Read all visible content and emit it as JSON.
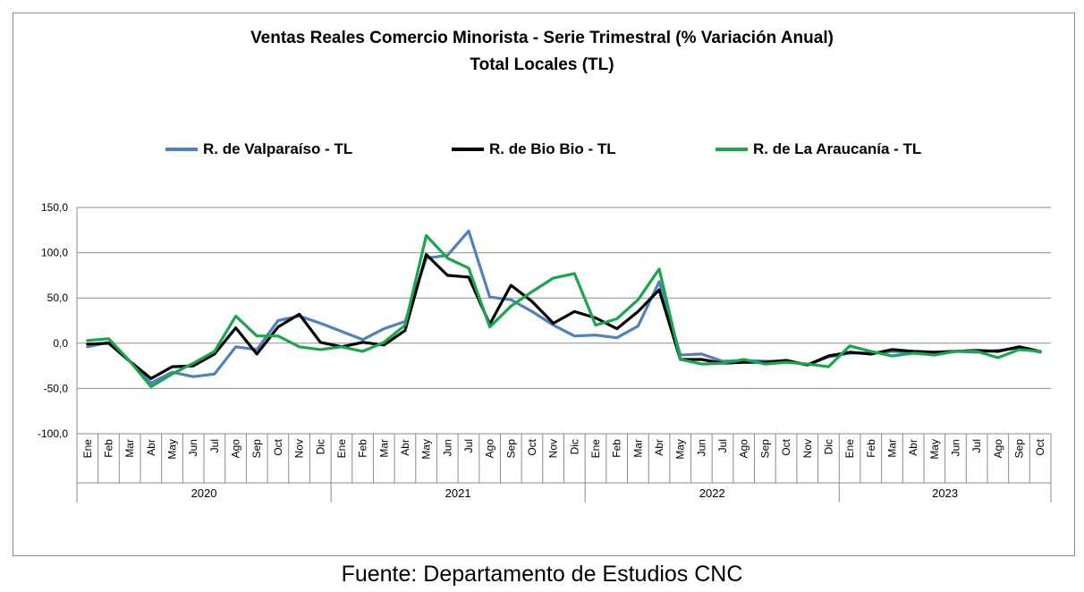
{
  "source_text": "Fuente: Departamento de Estudios CNC",
  "chart_data": {
    "type": "line",
    "title": "Ventas Reales Comercio Minorista - Serie Trimestral (% Variación Anual)",
    "subtitle": "Total Locales (TL)",
    "legend_position": "top",
    "grid": "horizontal",
    "ylim": [
      -100,
      150
    ],
    "yticks": [
      "150,0",
      "100,0",
      "50,0",
      "0,0",
      "-50,0",
      "-100,0"
    ],
    "ytick_values": [
      150,
      100,
      50,
      0,
      -50,
      -100
    ],
    "categories": [
      "Ene",
      "Feb",
      "Mar",
      "Abr",
      "May",
      "Jun",
      "Jul",
      "Ago",
      "Sep",
      "Oct",
      "Nov",
      "Dic",
      "Ene",
      "Feb",
      "Mar",
      "Abr",
      "May",
      "Jun",
      "Jul",
      "Ago",
      "Sep",
      "Oct",
      "Nov",
      "Dic",
      "Ene",
      "Feb",
      "Mar",
      "Abr",
      "May",
      "Jun",
      "Jul",
      "Ago",
      "Sep",
      "Oct",
      "Nov",
      "Dic",
      "Ene",
      "Feb",
      "Mar",
      "Abr",
      "May",
      "Jun",
      "Jul",
      "Ago",
      "Sep",
      "Oct"
    ],
    "years": [
      {
        "label": "2020",
        "count": 12
      },
      {
        "label": "2021",
        "count": 12
      },
      {
        "label": "2022",
        "count": 12
      },
      {
        "label": "2023",
        "count": 10
      }
    ],
    "series": [
      {
        "name": "R. de Valparaíso - TL",
        "color": "#4f81bd",
        "values": [
          -4,
          1,
          -20,
          -44,
          -32,
          -37,
          -34,
          -4,
          -7,
          25,
          30,
          22,
          13,
          4,
          16,
          24,
          94,
          97,
          124,
          51,
          48,
          35,
          20,
          8,
          9,
          6,
          19,
          68,
          -13,
          -12,
          -20,
          -19,
          -20,
          -20,
          -24,
          -15,
          -11,
          -11,
          -9,
          -10,
          -12,
          -9,
          -10,
          -8,
          -5,
          -10
        ]
      },
      {
        "name": "R. de Bio Bio - TL",
        "color": "#000000",
        "values": [
          -1,
          0,
          -20,
          -39,
          -26,
          -25,
          -12,
          17,
          -12,
          18,
          32,
          1,
          -4,
          1,
          -2,
          14,
          98,
          75,
          73,
          21,
          64,
          46,
          22,
          35,
          28,
          16,
          35,
          59,
          -18,
          -18,
          -22,
          -21,
          -21,
          -19,
          -24,
          -14,
          -10,
          -12,
          -7,
          -9,
          -10,
          -9,
          -8,
          -9,
          -4,
          -9
        ]
      },
      {
        "name": "R. de La Araucanía - TL",
        "color": "#1aa64b",
        "values": [
          3,
          5,
          -20,
          -48,
          -34,
          -22,
          -9,
          30,
          8,
          8,
          -4,
          -7,
          -4,
          -9,
          1,
          20,
          119,
          94,
          83,
          18,
          41,
          57,
          72,
          77,
          20,
          27,
          48,
          82,
          -18,
          -23,
          -22,
          -18,
          -23,
          -21,
          -23,
          -26,
          -3,
          -9,
          -14,
          -11,
          -13,
          -9,
          -9,
          -16,
          -7,
          -9
        ]
      }
    ]
  }
}
